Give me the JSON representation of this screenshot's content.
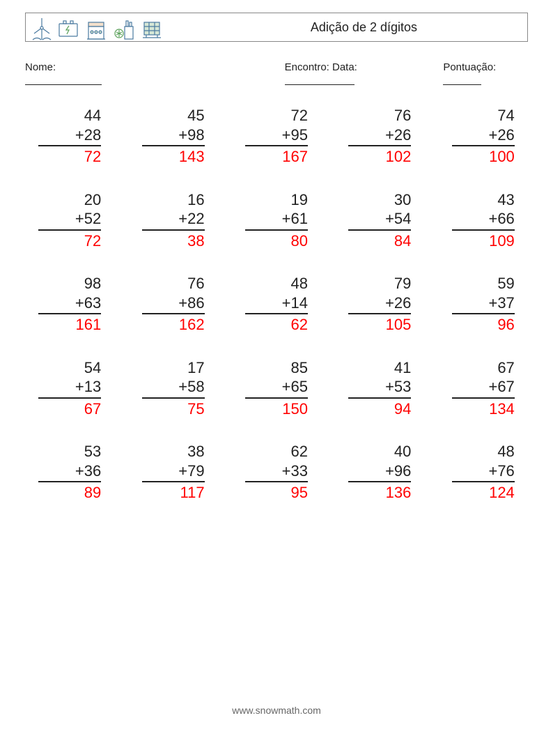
{
  "title": "Adição de 2 dígitos",
  "meta": {
    "name_label": "Nome:",
    "name_blank_width": 110,
    "date_label": "Encontro: Data:",
    "date_blank_width": 100,
    "score_label": "Pontuação:",
    "score_blank_width": 55
  },
  "style": {
    "text_color": "#222222",
    "answer_color": "#ff0000",
    "border_color": "#888888",
    "background_color": "#ffffff",
    "font_size_problems": 22,
    "font_size_title": 18,
    "font_size_meta": 15,
    "font_size_footer": 14,
    "columns": 5,
    "rows": 5,
    "operator": "+",
    "icon_colors": {
      "outline": "#4a7aa0",
      "accent": "#5aa05a",
      "accent2": "#d08030"
    }
  },
  "problems": [
    {
      "a": 44,
      "b": 28,
      "ans": 72
    },
    {
      "a": 45,
      "b": 98,
      "ans": 143
    },
    {
      "a": 72,
      "b": 95,
      "ans": 167
    },
    {
      "a": 76,
      "b": 26,
      "ans": 102
    },
    {
      "a": 74,
      "b": 26,
      "ans": 100
    },
    {
      "a": 20,
      "b": 52,
      "ans": 72
    },
    {
      "a": 16,
      "b": 22,
      "ans": 38
    },
    {
      "a": 19,
      "b": 61,
      "ans": 80
    },
    {
      "a": 30,
      "b": 54,
      "ans": 84
    },
    {
      "a": 43,
      "b": 66,
      "ans": 109
    },
    {
      "a": 98,
      "b": 63,
      "ans": 161
    },
    {
      "a": 76,
      "b": 86,
      "ans": 162
    },
    {
      "a": 48,
      "b": 14,
      "ans": 62
    },
    {
      "a": 79,
      "b": 26,
      "ans": 105
    },
    {
      "a": 59,
      "b": 37,
      "ans": 96
    },
    {
      "a": 54,
      "b": 13,
      "ans": 67
    },
    {
      "a": 17,
      "b": 58,
      "ans": 75
    },
    {
      "a": 85,
      "b": 65,
      "ans": 150
    },
    {
      "a": 41,
      "b": 53,
      "ans": 94
    },
    {
      "a": 67,
      "b": 67,
      "ans": 134
    },
    {
      "a": 53,
      "b": 36,
      "ans": 89
    },
    {
      "a": 38,
      "b": 79,
      "ans": 117
    },
    {
      "a": 62,
      "b": 33,
      "ans": 95
    },
    {
      "a": 40,
      "b": 96,
      "ans": 136
    },
    {
      "a": 48,
      "b": 76,
      "ans": 124
    }
  ],
  "footer": "www.snowmath.com"
}
